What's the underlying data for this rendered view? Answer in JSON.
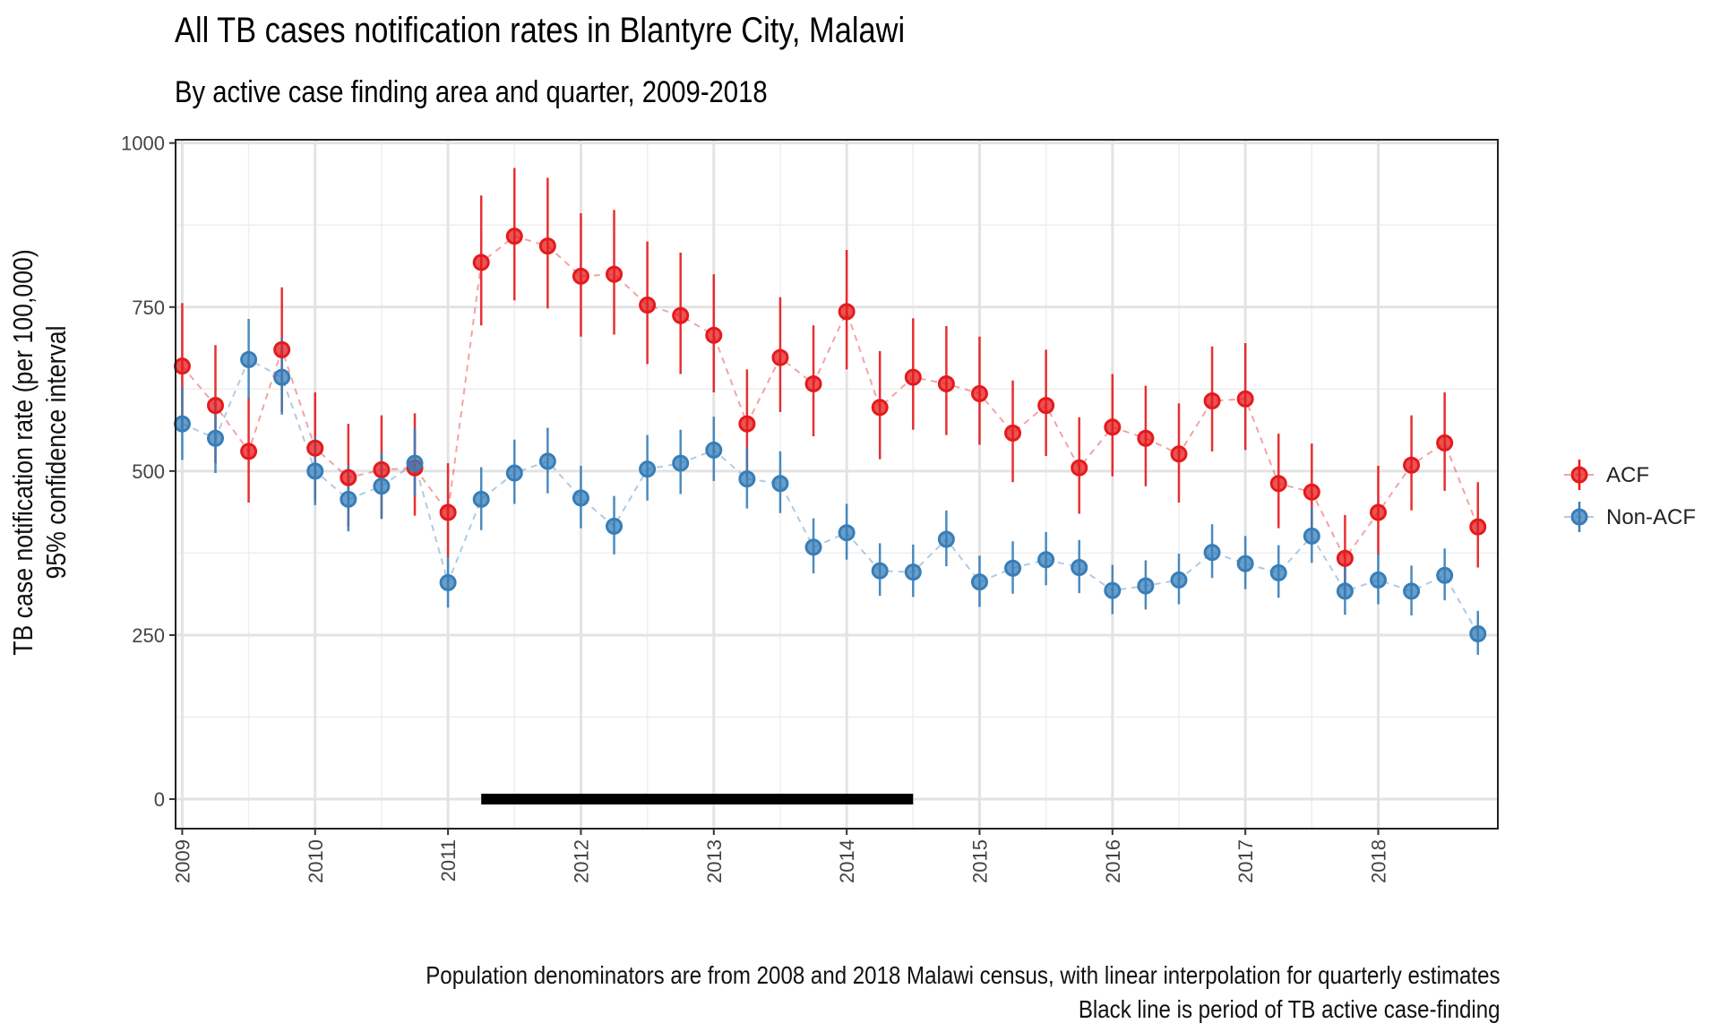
{
  "chart_data": {
    "type": "scatter",
    "title": "All TB cases notification rates in Blantyre City, Malawi",
    "subtitle": "By active case finding area and quarter, 2009-2018",
    "ylabel_line1": "TB case notification rate (per 100,000)",
    "ylabel_line2": "95% confidence interval",
    "caption_line1": "Population denominators are from 2008 and 2018 Malawi census, with linear interpolation for quarterly estimates",
    "caption_line2": "Black line is period of TB active case-finding",
    "xlim": [
      2008.95,
      2018.9
    ],
    "ylim": [
      -45,
      1005
    ],
    "y_ticks": [
      0,
      250,
      500,
      750,
      1000
    ],
    "x_ticks": [
      2009,
      2010,
      2011,
      2012,
      2013,
      2014,
      2015,
      2016,
      2017,
      2018
    ],
    "grid": true,
    "legend_position": "right",
    "acf_period": [
      2011.25,
      2014.5
    ],
    "acf_period_color": "#000000",
    "series": [
      {
        "name": "ACF",
        "color": "#e41a1c",
        "x": [
          2009.0,
          2009.25,
          2009.5,
          2009.75,
          2010.0,
          2010.25,
          2010.5,
          2010.75,
          2011.0,
          2011.25,
          2011.5,
          2011.75,
          2012.0,
          2012.25,
          2012.5,
          2012.75,
          2013.0,
          2013.25,
          2013.5,
          2013.75,
          2014.0,
          2014.25,
          2014.5,
          2014.75,
          2015.0,
          2015.25,
          2015.5,
          2015.75,
          2016.0,
          2016.25,
          2016.5,
          2016.75,
          2017.0,
          2017.25,
          2017.5,
          2017.75,
          2018.0,
          2018.25,
          2018.5,
          2018.75
        ],
        "y": [
          660,
          600,
          530,
          685,
          535,
          490,
          502,
          505,
          437,
          818,
          858,
          843,
          797,
          800,
          753,
          737,
          707,
          572,
          673,
          633,
          743,
          597,
          643,
          633,
          618,
          558,
          600,
          505,
          567,
          550,
          526,
          607,
          610,
          481,
          468,
          367,
          437,
          509,
          543,
          415
        ],
        "lo": [
          562,
          512,
          452,
          590,
          455,
          415,
          428,
          432,
          368,
          722,
          760,
          748,
          705,
          708,
          663,
          648,
          620,
          492,
          590,
          553,
          655,
          518,
          563,
          555,
          540,
          483,
          523,
          435,
          492,
          477,
          452,
          530,
          532,
          413,
          400,
          305,
          372,
          440,
          470,
          353
        ],
        "hi": [
          756,
          692,
          612,
          780,
          620,
          572,
          585,
          588,
          512,
          920,
          962,
          947,
          893,
          898,
          850,
          833,
          800,
          655,
          765,
          722,
          837,
          683,
          733,
          721,
          705,
          638,
          685,
          582,
          648,
          630,
          603,
          690,
          695,
          557,
          542,
          433,
          508,
          585,
          620,
          483
        ]
      },
      {
        "name": "Non-ACF",
        "color": "#377eb8",
        "x": [
          2009.0,
          2009.25,
          2009.5,
          2009.75,
          2010.0,
          2010.25,
          2010.5,
          2010.75,
          2011.0,
          2011.25,
          2011.5,
          2011.75,
          2012.0,
          2012.25,
          2012.5,
          2012.75,
          2013.0,
          2013.25,
          2013.5,
          2013.75,
          2014.0,
          2014.25,
          2014.5,
          2014.75,
          2015.0,
          2015.25,
          2015.5,
          2015.75,
          2016.0,
          2016.25,
          2016.5,
          2016.75,
          2017.0,
          2017.25,
          2017.5,
          2017.75,
          2018.0,
          2018.25,
          2018.5,
          2018.75
        ],
        "y": [
          572,
          550,
          670,
          643,
          500,
          457,
          477,
          512,
          330,
          457,
          497,
          515,
          459,
          416,
          503,
          512,
          532,
          488,
          481,
          384,
          406,
          348,
          346,
          396,
          331,
          352,
          365,
          353,
          318,
          325,
          334,
          376,
          359,
          345,
          401,
          317,
          334,
          317,
          341,
          252
        ],
        "lo": [
          517,
          497,
          610,
          586,
          448,
          408,
          427,
          461,
          292,
          410,
          450,
          466,
          413,
          373,
          455,
          465,
          485,
          443,
          436,
          344,
          365,
          310,
          308,
          355,
          293,
          313,
          326,
          314,
          282,
          289,
          297,
          337,
          320,
          307,
          360,
          281,
          297,
          280,
          303,
          220
        ],
        "hi": [
          628,
          605,
          732,
          703,
          553,
          508,
          528,
          565,
          370,
          506,
          548,
          566,
          508,
          462,
          555,
          563,
          583,
          537,
          530,
          428,
          450,
          390,
          388,
          440,
          371,
          393,
          407,
          395,
          357,
          364,
          374,
          419,
          401,
          387,
          445,
          356,
          374,
          356,
          382,
          287
        ]
      }
    ]
  }
}
